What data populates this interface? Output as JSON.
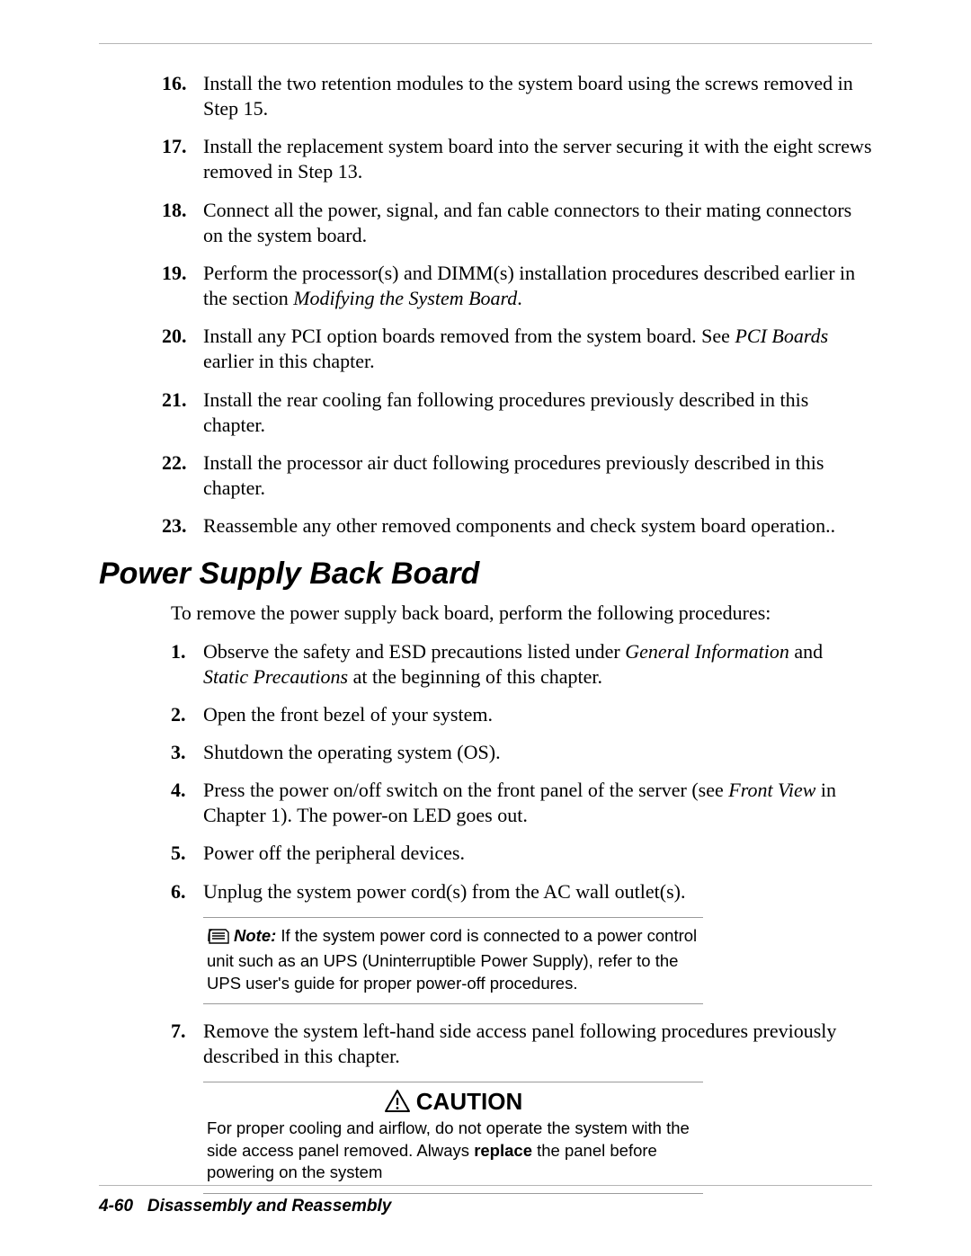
{
  "colors": {
    "rule": "#b5b5b5",
    "callout_rule": "#9a9a9a",
    "text": "#000000",
    "background": "#ffffff"
  },
  "typography": {
    "body_family": "Times New Roman",
    "heading_family": "Arial",
    "body_size_pt": 16,
    "heading_size_pt": 26,
    "callout_size_pt": 14,
    "footer_size_pt": 14
  },
  "first_list": {
    "start": 16,
    "items": [
      {
        "num": "16.",
        "segments": [
          {
            "t": "Install the two retention modules to the system board using the screws removed in Step 15."
          }
        ]
      },
      {
        "num": "17.",
        "segments": [
          {
            "t": "Install the replacement system board into the server securing it with the eight screws removed in Step 13."
          }
        ]
      },
      {
        "num": "18.",
        "segments": [
          {
            "t": "Connect all the power, signal, and fan cable connectors to their mating connectors on the system board."
          }
        ]
      },
      {
        "num": "19.",
        "segments": [
          {
            "t": "Perform the processor(s) and DIMM(s) installation procedures described earlier in the section "
          },
          {
            "t": "Modifying the System Board",
            "italic": true
          },
          {
            "t": "."
          }
        ]
      },
      {
        "num": "20.",
        "segments": [
          {
            "t": "Install any PCI option boards removed from the system board. See "
          },
          {
            "t": "PCI Boards",
            "italic": true
          },
          {
            "t": " earlier in this chapter."
          }
        ]
      },
      {
        "num": "21.",
        "segments": [
          {
            "t": "Install the rear cooling fan following procedures previously described in this chapter."
          }
        ]
      },
      {
        "num": "22.",
        "segments": [
          {
            "t": "Install the processor air duct following procedures previously described in this chapter."
          }
        ]
      },
      {
        "num": "23.",
        "segments": [
          {
            "t": "Reassemble any other removed components and check system board operation.."
          }
        ]
      }
    ]
  },
  "section_heading": "Power Supply Back Board",
  "section_intro": "To remove the power supply back board, perform the following procedures:",
  "second_list": {
    "start": 1,
    "items": [
      {
        "num": "1.",
        "segments": [
          {
            "t": "Observe the safety and ESD precautions listed under "
          },
          {
            "t": "General Information",
            "italic": true
          },
          {
            "t": " and "
          },
          {
            "t": "Static Precautions",
            "italic": true
          },
          {
            "t": " at the beginning of this chapter."
          }
        ]
      },
      {
        "num": "2.",
        "segments": [
          {
            "t": "Open the front bezel of your system."
          }
        ]
      },
      {
        "num": "3.",
        "segments": [
          {
            "t": "Shutdown the operating system (OS)."
          }
        ]
      },
      {
        "num": "4.",
        "segments": [
          {
            "t": "Press the power on/off switch on the front panel of the server (see "
          },
          {
            "t": "Front View",
            "italic": true
          },
          {
            "t": " in Chapter 1). The power-on LED goes out."
          }
        ]
      },
      {
        "num": "5.",
        "segments": [
          {
            "t": "Power off the peripheral devices."
          }
        ]
      },
      {
        "num": "6.",
        "segments": [
          {
            "t": "Unplug the system power cord(s) from the AC wall outlet(s)."
          }
        ]
      }
    ]
  },
  "note_callout": {
    "label": "Note:",
    "text": " If the system power cord is connected to a power control unit such as an UPS (Uninterruptible Power Supply), refer to the UPS user's guide for proper power-off procedures."
  },
  "third_list": {
    "items": [
      {
        "num": "7.",
        "segments": [
          {
            "t": "Remove the system left-hand side access panel following procedures previously described in this chapter."
          }
        ]
      }
    ]
  },
  "caution_callout": {
    "heading": "CAUTION",
    "pre": "For proper cooling and airflow, do not operate the system with the side access panel removed. Always ",
    "bold": "replace",
    "post": " the panel before powering on the system"
  },
  "footer": {
    "page": "4-60",
    "title": "Disassembly and Reassembly"
  }
}
